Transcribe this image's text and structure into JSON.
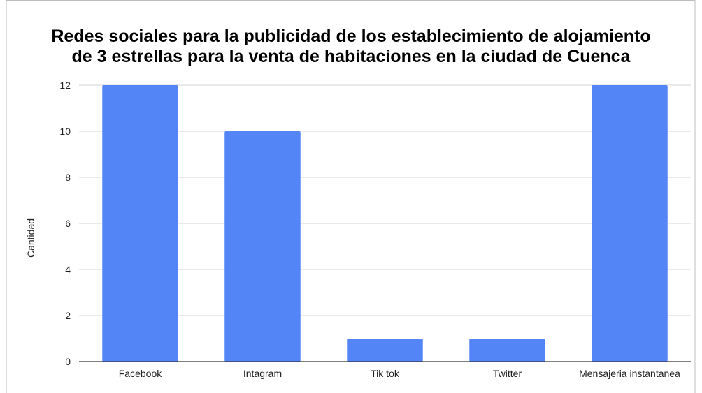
{
  "chart_data": {
    "type": "bar",
    "title": [
      "Redes sociales para la publicidad de los establecimiento de alojamiento",
      "de 3 estrellas para la venta de habitaciones en la ciudad de Cuenca"
    ],
    "ylabel": "Cantidad",
    "xlabel": "",
    "categories": [
      "Facebook",
      "Intagram",
      "Tik tok",
      "Twitter",
      "Mensajeria instantanea"
    ],
    "values": [
      12,
      10,
      1,
      1,
      12
    ],
    "ylim": [
      0,
      12
    ],
    "yticks": [
      0,
      2,
      4,
      6,
      8,
      10,
      12
    ],
    "grid": true,
    "legend": "none",
    "bar_color": "#5485f7",
    "grid_color": "#d4d4d4",
    "axis_color": "#333333"
  }
}
